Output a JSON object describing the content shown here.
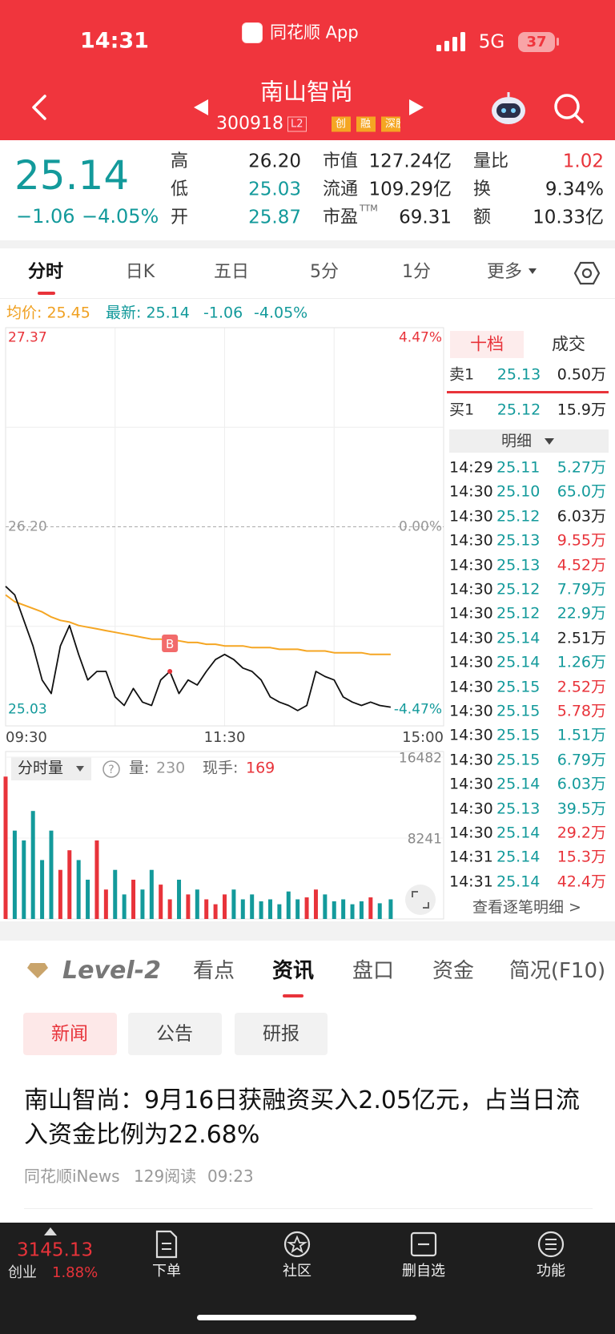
{
  "status": {
    "time": "14:31",
    "app": "同花顺 App",
    "network": "5G",
    "battery": "37"
  },
  "header": {
    "name": "南山智尚",
    "code": "300918",
    "badges": [
      "L2",
      "创",
      "融",
      "深股"
    ]
  },
  "quote": {
    "price": "25.14",
    "change": "−1.06",
    "change_pct": "−4.05%",
    "stats": [
      [
        {
          "label": "高",
          "value": "26.20",
          "tone": "flat"
        },
        {
          "label": "低",
          "value": "25.03",
          "tone": "down"
        },
        {
          "label": "开",
          "value": "25.87",
          "tone": "down"
        }
      ],
      [
        {
          "label": "市值",
          "value": "127.24亿",
          "tone": "flat"
        },
        {
          "label": "流通",
          "value": "109.29亿",
          "tone": "flat"
        },
        {
          "label": "市盈",
          "sup": "TTM",
          "value": "69.31",
          "tone": "flat"
        }
      ],
      [
        {
          "label": "量比",
          "value": "1.02",
          "tone": "up"
        },
        {
          "label": "换",
          "value": "9.34%",
          "tone": "flat"
        },
        {
          "label": "额",
          "value": "10.33亿",
          "tone": "flat"
        }
      ]
    ]
  },
  "tabs": [
    "分时",
    "日K",
    "五日",
    "5分",
    "1分",
    "更多"
  ],
  "summary": {
    "avg": "均价: 25.45",
    "latest": "最新: 25.14",
    "change": "-1.06",
    "change_pct": "-4.05%"
  },
  "chart_data": [
    {
      "type": "line",
      "x": [
        0,
        5,
        10,
        15,
        20,
        25,
        30,
        35,
        40,
        45,
        50,
        55,
        60,
        65,
        70,
        75,
        80,
        85,
        90,
        95,
        100,
        105,
        110,
        115,
        120,
        125,
        130,
        135,
        140,
        145,
        150,
        155,
        160,
        165,
        170,
        175,
        180,
        185,
        190,
        195,
        200,
        205,
        211
      ],
      "xlim": [
        0,
        240
      ],
      "xticks": [
        {
          "value": 0,
          "label": "09:30"
        },
        {
          "value": 120,
          "label": "11:30"
        },
        {
          "value": 240,
          "label": "15:00"
        }
      ],
      "ylim": [
        25.03,
        27.37
      ],
      "yticks": [
        27.37,
        {
          "value": 26.2,
          "label": "26.20"
        },
        25.03
      ],
      "y2lim": [
        -4.47,
        4.47
      ],
      "y2ticks": [
        {
          "value": 4.47,
          "label": "4.47%"
        },
        {
          "value": 0,
          "label": "0.00%"
        },
        {
          "value": -4.47,
          "label": "-4.47%"
        }
      ],
      "marker": "B",
      "series": [
        {
          "name": "price",
          "color": "#111111",
          "values": [
            25.85,
            25.8,
            25.65,
            25.5,
            25.3,
            25.22,
            25.5,
            25.62,
            25.45,
            25.3,
            25.35,
            25.35,
            25.2,
            25.15,
            25.25,
            25.17,
            25.15,
            25.3,
            25.35,
            25.22,
            25.3,
            25.27,
            25.35,
            25.42,
            25.45,
            25.42,
            25.37,
            25.35,
            25.3,
            25.2,
            25.17,
            25.15,
            25.12,
            25.15,
            25.35,
            25.32,
            25.3,
            25.2,
            25.17,
            25.15,
            25.17,
            25.15,
            25.14
          ]
        },
        {
          "name": "average",
          "color": "#f5a623",
          "values": [
            25.8,
            25.76,
            25.74,
            25.72,
            25.7,
            25.67,
            25.65,
            25.64,
            25.62,
            25.61,
            25.6,
            25.59,
            25.58,
            25.57,
            25.56,
            25.55,
            25.54,
            25.54,
            25.53,
            25.53,
            25.52,
            25.52,
            25.51,
            25.51,
            25.5,
            25.5,
            25.5,
            25.49,
            25.49,
            25.49,
            25.48,
            25.48,
            25.48,
            25.47,
            25.47,
            25.47,
            25.46,
            25.46,
            25.46,
            25.46,
            25.45,
            25.45,
            25.45
          ]
        }
      ]
    },
    {
      "type": "bar",
      "title": "分时量",
      "volume_label": "量:",
      "volume": "230",
      "hand_label": "现手:",
      "hand": "169",
      "ylim": [
        0,
        16482
      ],
      "yticks": [
        16482,
        8241
      ],
      "color_up": "#e8333a",
      "color_down": "#139a9b",
      "values": [
        14500,
        9000,
        8000,
        11000,
        6000,
        9000,
        5000,
        7000,
        6000,
        4000,
        8000,
        3000,
        5000,
        2500,
        4000,
        3000,
        5000,
        3500,
        2000,
        4000,
        2500,
        3000,
        2000,
        1500,
        2500,
        3000,
        2000,
        2500,
        1800,
        2000,
        1500,
        2800,
        2000,
        2200,
        3000,
        2500,
        1800,
        2000,
        1500,
        1800,
        2200,
        1600,
        2000
      ]
    }
  ],
  "order_book": {
    "tabs": [
      "十档",
      "成交"
    ],
    "sell": {
      "label": "卖1",
      "price": "25.13",
      "volume": "0.50万"
    },
    "buy": {
      "label": "买1",
      "price": "25.12",
      "volume": "15.9万"
    },
    "detail": "明细",
    "trades": [
      {
        "time": "14:29",
        "price": "25.11",
        "volume": "5.27万",
        "tone": "down"
      },
      {
        "time": "14:30",
        "price": "25.10",
        "volume": "65.0万",
        "tone": "down"
      },
      {
        "time": "14:30",
        "price": "25.12",
        "volume": "6.03万",
        "tone": "flat"
      },
      {
        "time": "14:30",
        "price": "25.13",
        "volume": "9.55万",
        "tone": "up"
      },
      {
        "time": "14:30",
        "price": "25.13",
        "volume": "4.52万",
        "tone": "up"
      },
      {
        "time": "14:30",
        "price": "25.12",
        "volume": "7.79万",
        "tone": "down"
      },
      {
        "time": "14:30",
        "price": "25.12",
        "volume": "22.9万",
        "tone": "down"
      },
      {
        "time": "14:30",
        "price": "25.14",
        "volume": "2.51万",
        "tone": "flat"
      },
      {
        "time": "14:30",
        "price": "25.14",
        "volume": "1.26万",
        "tone": "down"
      },
      {
        "time": "14:30",
        "price": "25.15",
        "volume": "2.52万",
        "tone": "up"
      },
      {
        "time": "14:30",
        "price": "25.15",
        "volume": "5.78万",
        "tone": "up"
      },
      {
        "time": "14:30",
        "price": "25.15",
        "volume": "1.51万",
        "tone": "down"
      },
      {
        "time": "14:30",
        "price": "25.15",
        "volume": "6.79万",
        "tone": "down"
      },
      {
        "time": "14:30",
        "price": "25.14",
        "volume": "6.03万",
        "tone": "down"
      },
      {
        "time": "14:30",
        "price": "25.13",
        "volume": "39.5万",
        "tone": "down"
      },
      {
        "time": "14:30",
        "price": "25.14",
        "volume": "29.2万",
        "tone": "up"
      },
      {
        "time": "14:31",
        "price": "25.14",
        "volume": "15.3万",
        "tone": "up"
      },
      {
        "time": "14:31",
        "price": "25.14",
        "volume": "42.4万",
        "tone": "up"
      }
    ],
    "more": "查看逐笔明细 >"
  },
  "info": {
    "logo": "Level-2",
    "tabs": [
      "看点",
      "资讯",
      "盘口",
      "资金",
      "简况(F10)"
    ],
    "subtabs": [
      "新闻",
      "公告",
      "研报"
    ],
    "news": {
      "title": "南山智尚：9月16日获融资买入2.05亿元，占当日流入资金比例为22.68%",
      "source": "同花顺iNews",
      "reads": "129阅读",
      "time": "09:23"
    }
  },
  "bottom_bar": {
    "index_value": "3145.13",
    "index_name": "创业",
    "index_change": "1.88%",
    "nav": [
      "下单",
      "社区",
      "删自选",
      "功能"
    ]
  }
}
